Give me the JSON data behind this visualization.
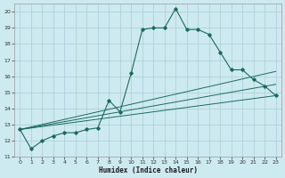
{
  "xlabel": "Humidex (Indice chaleur)",
  "xlim": [
    -0.5,
    23.5
  ],
  "ylim": [
    11,
    20.5
  ],
  "yticks": [
    11,
    12,
    13,
    14,
    15,
    16,
    17,
    18,
    19,
    20
  ],
  "xticks": [
    0,
    1,
    2,
    3,
    4,
    5,
    6,
    7,
    8,
    9,
    10,
    11,
    12,
    13,
    14,
    15,
    16,
    17,
    18,
    19,
    20,
    21,
    22,
    23
  ],
  "bg_color": "#cdeaf0",
  "grid_color": "#aacdd8",
  "line_color": "#1a6b5a",
  "main_line_x": [
    0,
    1,
    2,
    3,
    4,
    5,
    6,
    7,
    8,
    9,
    10,
    11,
    12,
    13,
    14,
    15,
    16,
    17,
    18,
    19,
    20,
    21,
    22,
    23
  ],
  "main_line_y": [
    12.7,
    11.5,
    12.0,
    12.3,
    12.5,
    12.5,
    12.7,
    12.8,
    14.5,
    13.8,
    16.2,
    18.9,
    19.0,
    19.0,
    20.2,
    18.9,
    18.9,
    18.6,
    17.5,
    16.4,
    16.4,
    15.8,
    15.4,
    14.8
  ],
  "line2_x": [
    0,
    23
  ],
  "line2_y": [
    12.7,
    14.8
  ],
  "line3_x": [
    0,
    23
  ],
  "line3_y": [
    12.7,
    15.5
  ],
  "line4_x": [
    0,
    23
  ],
  "line4_y": [
    12.7,
    16.3
  ]
}
